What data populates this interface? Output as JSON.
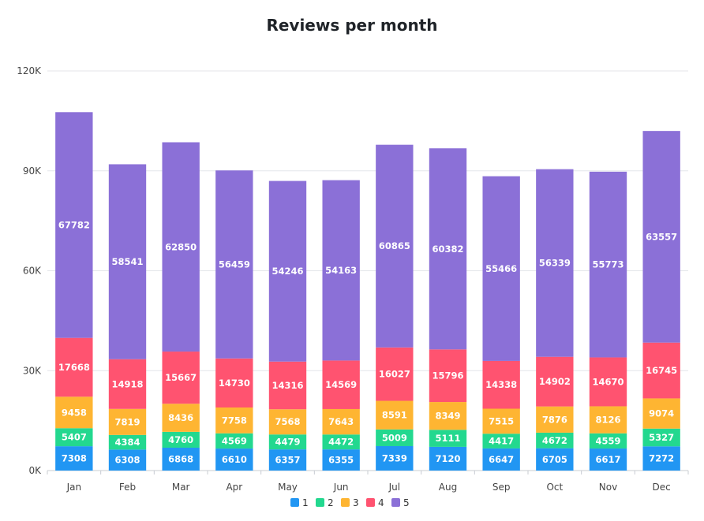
{
  "chart_data": {
    "type": "bar",
    "stacked": true,
    "title": "Reviews per month",
    "categories": [
      "Jan",
      "Feb",
      "Mar",
      "Apr",
      "May",
      "Jun",
      "Jul",
      "Aug",
      "Sep",
      "Oct",
      "Nov",
      "Dec"
    ],
    "series": [
      {
        "name": "1",
        "color": "#2196f3",
        "values": [
          7308,
          6308,
          6868,
          6610,
          6357,
          6355,
          7339,
          7120,
          6647,
          6705,
          6617,
          7272
        ]
      },
      {
        "name": "2",
        "color": "#23d88f",
        "values": [
          5407,
          4384,
          4760,
          4569,
          4479,
          4472,
          5009,
          5111,
          4417,
          4672,
          4559,
          5327
        ]
      },
      {
        "name": "3",
        "color": "#feb532",
        "values": [
          9458,
          7819,
          8436,
          7758,
          7568,
          7643,
          8591,
          8349,
          7515,
          7876,
          8126,
          9074
        ]
      },
      {
        "name": "4",
        "color": "#ff5370",
        "values": [
          17668,
          14918,
          15667,
          14730,
          14316,
          14569,
          16027,
          15796,
          14338,
          14902,
          14670,
          16745
        ]
      },
      {
        "name": "5",
        "color": "#8b70d7",
        "values": [
          67782,
          58541,
          62850,
          56459,
          54246,
          54163,
          60865,
          60382,
          55466,
          56339,
          55773,
          63557
        ]
      }
    ],
    "ylim": [
      0,
      120000
    ],
    "yticks": [
      0,
      30000,
      60000,
      90000,
      120000
    ],
    "ytick_labels": [
      "0K",
      "30K",
      "60K",
      "90K",
      "120K"
    ],
    "grid": true,
    "legend_position": "bottom-center"
  }
}
